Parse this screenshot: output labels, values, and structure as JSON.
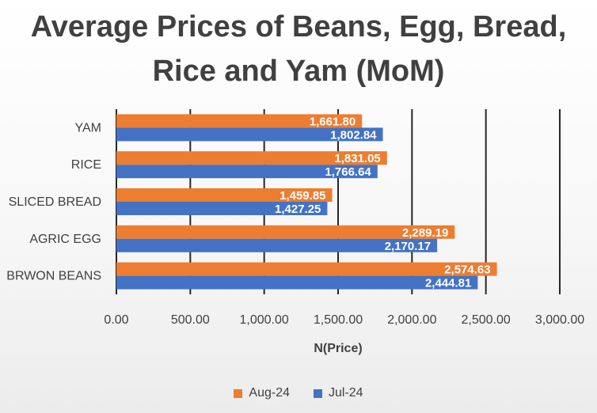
{
  "chart_data": {
    "type": "bar",
    "orientation": "horizontal",
    "title_lines": [
      "Average Prices of Beans, Egg, Bread,",
      "Rice and Yam (MoM)"
    ],
    "categories": [
      "YAM",
      "RICE",
      "SLICED BREAD",
      "AGRIC EGG",
      "BRWON BEANS"
    ],
    "series": [
      {
        "name": "Aug-24",
        "color": "#ED7D31",
        "values": [
          1661.8,
          1831.05,
          1459.85,
          2289.19,
          2574.63
        ],
        "labels": [
          "1,661.80",
          "1,831.05",
          "1,459.85",
          "2,289.19",
          "2,574.63"
        ]
      },
      {
        "name": "Jul-24",
        "color": "#4472C4",
        "values": [
          1802.84,
          1766.64,
          1427.25,
          2170.17,
          2444.81
        ],
        "labels": [
          "1,802.84",
          "1,766.64",
          "1,427.25",
          "2,170.17",
          "2,444.81"
        ]
      }
    ],
    "xlabel": "N(Price)",
    "ylabel": "",
    "xlim": [
      0,
      3000
    ],
    "xticks": [
      0,
      500,
      1000,
      1500,
      2000,
      2500,
      3000
    ],
    "xtick_labels": [
      "0.00",
      "500.00",
      "1,000.00",
      "1,500.00",
      "2,000.00",
      "2,500.00",
      "3,000.00"
    ],
    "grid": true,
    "legend_position": "bottom"
  }
}
